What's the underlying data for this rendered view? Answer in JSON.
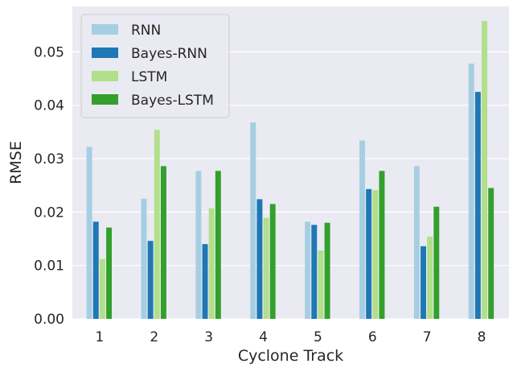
{
  "chart_data": {
    "type": "bar",
    "xlabel": "Cyclone Track",
    "ylabel": "RMSE",
    "categories": [
      "1",
      "2",
      "3",
      "4",
      "5",
      "6",
      "7",
      "8"
    ],
    "ylim": [
      0,
      0.0585
    ],
    "yticks": [
      0.0,
      0.01,
      0.02,
      0.03,
      0.04,
      0.05
    ],
    "ytick_labels": [
      "0.00",
      "0.01",
      "0.02",
      "0.03",
      "0.04",
      "0.05"
    ],
    "grid": true,
    "legend_position": "top-left",
    "series": [
      {
        "name": "RNN",
        "color": "#a6cee3",
        "values": [
          0.0322,
          0.0225,
          0.0277,
          0.0368,
          0.0182,
          0.0334,
          0.0286,
          0.0478
        ]
      },
      {
        "name": "Bayes-RNN",
        "color": "#1f78b4",
        "values": [
          0.0182,
          0.0146,
          0.014,
          0.0224,
          0.0176,
          0.0243,
          0.0136,
          0.0425
        ]
      },
      {
        "name": "LSTM",
        "color": "#b2df8a",
        "values": [
          0.0112,
          0.0354,
          0.0207,
          0.0189,
          0.0128,
          0.0241,
          0.0154,
          0.0558
        ]
      },
      {
        "name": "Bayes-LSTM",
        "color": "#33a02c",
        "values": [
          0.0171,
          0.0286,
          0.0277,
          0.0215,
          0.018,
          0.0277,
          0.021,
          0.0245
        ]
      }
    ]
  }
}
